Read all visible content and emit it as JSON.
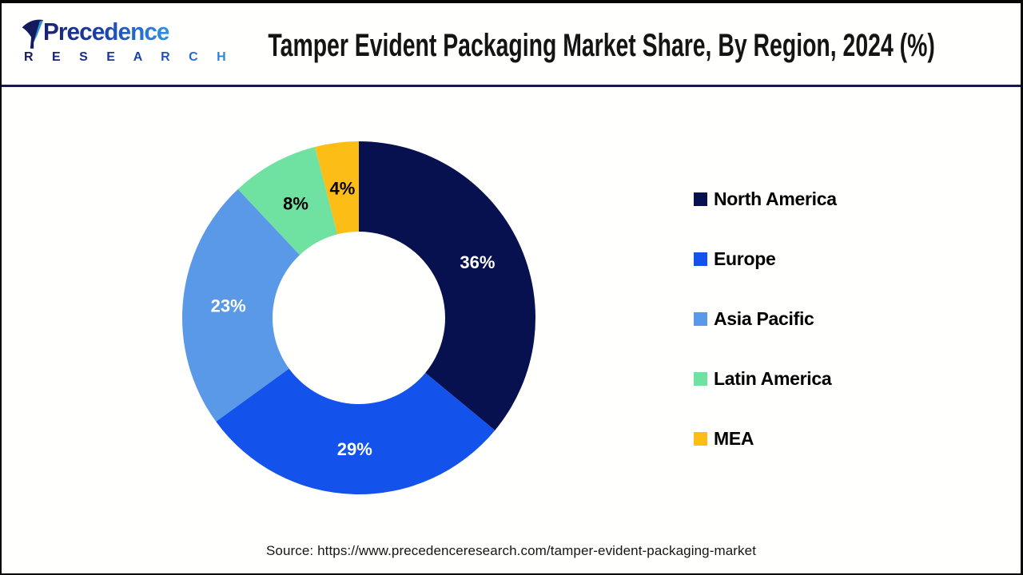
{
  "logo": {
    "name": "Precedence",
    "subtitle": "R E S E A R C H"
  },
  "chart_data": {
    "type": "pie",
    "subtype": "donut",
    "title": "Tamper Evident Packaging Market Share, By Region, 2024 (%)",
    "unit": "%",
    "categories": [
      "North America",
      "Europe",
      "Asia Pacific",
      "Latin America",
      "MEA"
    ],
    "values": [
      36,
      29,
      23,
      8,
      4
    ],
    "slices": [
      {
        "label": "North America",
        "value": 36,
        "color": "#081150",
        "label_color": "#ffffff"
      },
      {
        "label": "Europe",
        "value": 29,
        "color": "#1353EC",
        "label_color": "#ffffff"
      },
      {
        "label": "Asia Pacific",
        "value": 23,
        "color": "#5A99E8",
        "label_color": "#ffffff"
      },
      {
        "label": "Latin America",
        "value": 8,
        "color": "#6FE1A1",
        "label_color": "#000000"
      },
      {
        "label": "MEA",
        "value": 4,
        "color": "#FBBD16",
        "label_color": "#000000"
      }
    ],
    "start_angle_deg": 0,
    "direction": "clockwise",
    "donut_hole_ratio": 0.49,
    "legend_position": "right",
    "data_labels": "inside"
  },
  "footer": {
    "source": "Source: https://www.precedenceresearch.com/tamper-evident-packaging-market"
  }
}
